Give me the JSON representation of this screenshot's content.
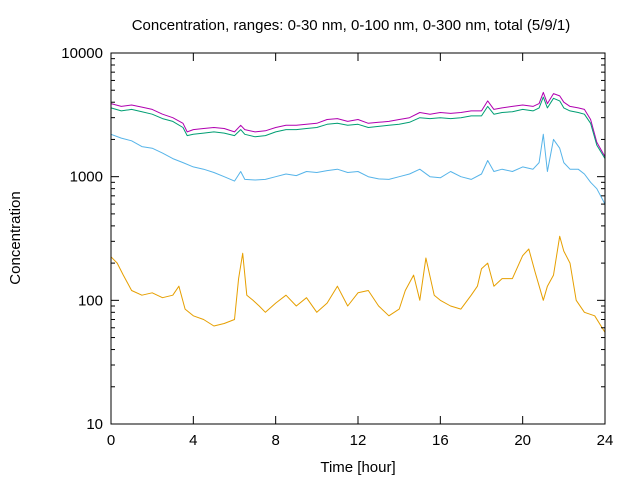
{
  "chart_data": {
    "type": "line",
    "title": "Concentration, ranges: 0-30 nm, 0-100 nm, 0-300 nm, total (5/9/1)",
    "xlabel": "Time [hour]",
    "ylabel": "Concentration",
    "xlim": [
      0,
      24
    ],
    "ylim": [
      10,
      10000
    ],
    "yscale": "log",
    "grid": false,
    "legend": "none",
    "xticks": [
      0,
      4,
      8,
      12,
      16,
      20,
      24
    ],
    "xtick_labels": [
      "0",
      "4",
      "8",
      "12",
      "16",
      "20",
      "24"
    ],
    "yticks": [
      10,
      100,
      1000,
      10000
    ],
    "ytick_labels": [
      "10",
      "100",
      "1000",
      "10000"
    ],
    "series": [
      {
        "color": "#b000b0",
        "x": [
          0,
          0.5,
          1,
          1.5,
          2,
          2.5,
          3,
          3.5,
          3.7,
          4,
          4.5,
          5,
          5.5,
          6,
          6.3,
          6.5,
          7,
          7.5,
          8,
          8.5,
          9,
          9.5,
          10,
          10.5,
          11,
          11.5,
          12,
          12.5,
          13,
          13.5,
          14,
          14.5,
          15,
          15.5,
          16,
          16.5,
          17,
          17.5,
          18,
          18.3,
          18.6,
          19,
          19.5,
          20,
          20.5,
          20.8,
          21,
          21.2,
          21.5,
          21.8,
          22,
          22.3,
          22.7,
          23,
          23.3,
          23.6,
          24
        ],
        "y": [
          3900,
          3700,
          3800,
          3650,
          3500,
          3200,
          3000,
          2700,
          2300,
          2400,
          2450,
          2500,
          2450,
          2300,
          2600,
          2400,
          2300,
          2350,
          2500,
          2600,
          2600,
          2650,
          2700,
          2900,
          2950,
          2800,
          2900,
          2700,
          2750,
          2800,
          2900,
          3000,
          3300,
          3200,
          3300,
          3250,
          3300,
          3400,
          3400,
          4100,
          3500,
          3600,
          3700,
          3800,
          3700,
          3900,
          4800,
          3900,
          4700,
          4500,
          4000,
          3700,
          3600,
          3500,
          2900,
          1900,
          1450
        ]
      },
      {
        "color": "#009e73",
        "x": [
          0,
          0.5,
          1,
          1.5,
          2,
          2.5,
          3,
          3.5,
          3.7,
          4,
          4.5,
          5,
          5.5,
          6,
          6.3,
          6.5,
          7,
          7.5,
          8,
          8.5,
          9,
          9.5,
          10,
          10.5,
          11,
          11.5,
          12,
          12.5,
          13,
          13.5,
          14,
          14.5,
          15,
          15.5,
          16,
          16.5,
          17,
          17.5,
          18,
          18.3,
          18.6,
          19,
          19.5,
          20,
          20.5,
          20.8,
          21,
          21.2,
          21.5,
          21.8,
          22,
          22.3,
          22.7,
          23,
          23.3,
          23.6,
          24
        ],
        "y": [
          3600,
          3400,
          3500,
          3350,
          3200,
          2950,
          2800,
          2500,
          2150,
          2200,
          2250,
          2300,
          2250,
          2150,
          2400,
          2200,
          2100,
          2150,
          2300,
          2400,
          2400,
          2450,
          2500,
          2650,
          2700,
          2600,
          2650,
          2500,
          2550,
          2600,
          2650,
          2750,
          3000,
          2950,
          3000,
          2950,
          3000,
          3100,
          3100,
          3700,
          3200,
          3300,
          3350,
          3500,
          3400,
          3600,
          4400,
          3600,
          4300,
          4100,
          3600,
          3400,
          3300,
          3200,
          2700,
          1800,
          1400
        ]
      },
      {
        "color": "#56b4e9",
        "x": [
          0,
          0.5,
          1,
          1.5,
          2,
          2.5,
          3,
          3.5,
          4,
          4.5,
          5,
          5.5,
          6,
          6.3,
          6.5,
          7,
          7.5,
          8,
          8.5,
          9,
          9.5,
          10,
          10.5,
          11,
          11.5,
          12,
          12.5,
          13,
          13.5,
          14,
          14.5,
          15,
          15.5,
          16,
          16.5,
          17,
          17.5,
          18,
          18.3,
          18.6,
          19,
          19.5,
          20,
          20.5,
          20.8,
          21,
          21.2,
          21.5,
          21.8,
          22,
          22.3,
          22.7,
          23,
          23.3,
          23.6,
          24
        ],
        "y": [
          2200,
          2050,
          1950,
          1750,
          1700,
          1550,
          1400,
          1300,
          1200,
          1150,
          1080,
          1000,
          920,
          1100,
          950,
          940,
          950,
          1000,
          1050,
          1020,
          1100,
          1080,
          1120,
          1150,
          1080,
          1100,
          1000,
          960,
          950,
          1000,
          1050,
          1150,
          1000,
          980,
          1100,
          1000,
          950,
          1050,
          1350,
          1100,
          1150,
          1100,
          1200,
          1150,
          1300,
          2200,
          1100,
          2000,
          1700,
          1300,
          1150,
          1150,
          1050,
          900,
          800,
          600
        ]
      },
      {
        "color": "#e69f00",
        "x": [
          0,
          0.3,
          0.6,
          1,
          1.5,
          2,
          2.5,
          3,
          3.3,
          3.6,
          4,
          4.5,
          5,
          5.5,
          6,
          6.2,
          6.4,
          6.6,
          6.9,
          7.2,
          7.5,
          8,
          8.5,
          9,
          9.5,
          10,
          10.5,
          11,
          11.5,
          12,
          12.5,
          13,
          13.5,
          14,
          14.3,
          14.7,
          15,
          15.3,
          15.7,
          16,
          16.5,
          17,
          17.5,
          17.8,
          18,
          18.3,
          18.6,
          19,
          19.5,
          20,
          20.3,
          20.6,
          21,
          21.2,
          21.5,
          21.8,
          22,
          22.3,
          22.6,
          23,
          23.5,
          24
        ],
        "y": [
          225,
          200,
          160,
          120,
          110,
          115,
          105,
          110,
          130,
          85,
          75,
          70,
          62,
          65,
          70,
          150,
          240,
          110,
          100,
          90,
          80,
          95,
          110,
          90,
          105,
          80,
          95,
          130,
          90,
          115,
          120,
          90,
          75,
          85,
          120,
          160,
          100,
          220,
          110,
          100,
          90,
          85,
          110,
          130,
          180,
          200,
          130,
          150,
          150,
          230,
          260,
          170,
          100,
          130,
          160,
          330,
          250,
          200,
          100,
          80,
          75,
          55
        ]
      }
    ]
  }
}
